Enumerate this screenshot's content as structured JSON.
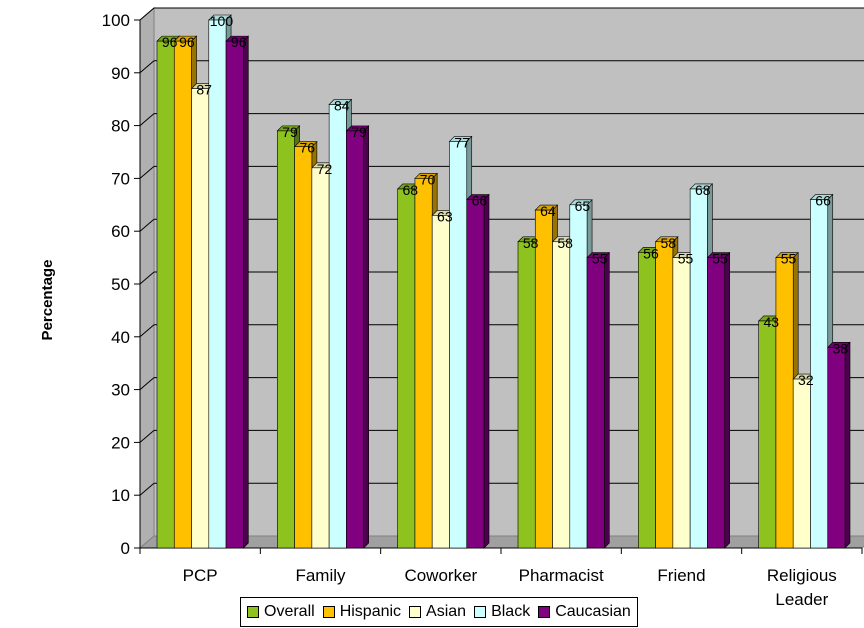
{
  "chart_data": {
    "type": "bar",
    "title": "",
    "xlabel": "",
    "ylabel": "Percentage",
    "ylim": [
      0,
      100
    ],
    "yticks": [
      0,
      10,
      20,
      30,
      40,
      50,
      60,
      70,
      80,
      90,
      100
    ],
    "grid": true,
    "legend_position": "bottom",
    "categories": [
      "PCP",
      "Family",
      "Coworker",
      "Pharmacist",
      "Friend",
      "Religious Leader"
    ],
    "series": [
      {
        "name": "Overall",
        "color": "#8DC21F",
        "values": [
          96,
          79,
          68,
          58,
          56,
          43
        ]
      },
      {
        "name": "Hispanic",
        "color": "#FFC000",
        "values": [
          96,
          76,
          70,
          64,
          58,
          55
        ]
      },
      {
        "name": "Asian",
        "color": "#FFFFCC",
        "values": [
          87,
          72,
          63,
          58,
          55,
          32
        ]
      },
      {
        "name": "Black",
        "color": "#CCFFFF",
        "values": [
          100,
          84,
          77,
          65,
          68,
          66
        ]
      },
      {
        "name": "Caucasian",
        "color": "#800080",
        "values": [
          96,
          79,
          66,
          55,
          55,
          38
        ]
      }
    ]
  }
}
